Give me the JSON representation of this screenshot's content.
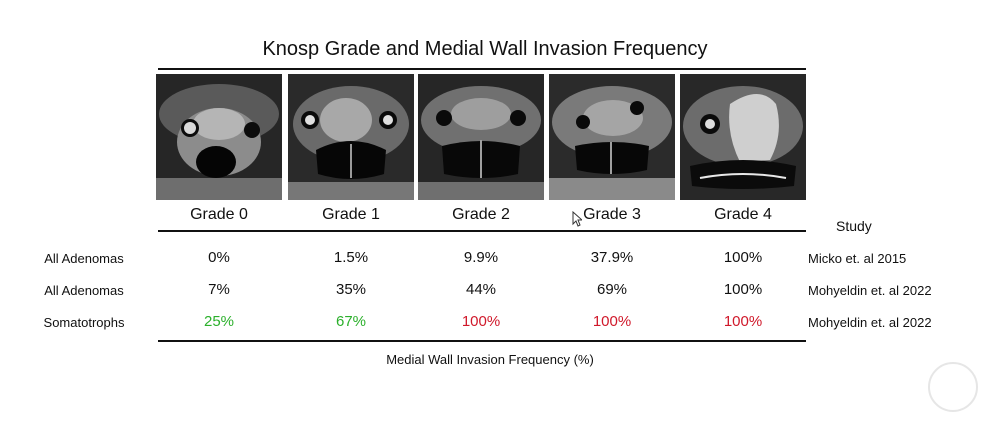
{
  "title": "Knosp Grade and Medial Wall Invasion Frequency",
  "grades": [
    "Grade 0",
    "Grade 1",
    "Grade 2",
    "Grade 3",
    "Grade 4"
  ],
  "study_header": "Study",
  "rows": [
    {
      "label": "All Adenomas",
      "values": [
        "0%",
        "1.5%",
        "9.9%",
        "37.9%",
        "100%"
      ],
      "value_colors": [
        "#111111",
        "#111111",
        "#111111",
        "#111111",
        "#111111"
      ],
      "study": "Micko et. al 2015"
    },
    {
      "label": "All Adenomas",
      "values": [
        "7%",
        "35%",
        "44%",
        "69%",
        "100%"
      ],
      "value_colors": [
        "#111111",
        "#111111",
        "#111111",
        "#111111",
        "#111111"
      ],
      "study": "Mohyeldin et. al 2022"
    },
    {
      "label": "Somatotrophs",
      "values": [
        "25%",
        "67%",
        "100%",
        "100%",
        "100%"
      ],
      "value_colors": [
        "#2bb02b",
        "#2bb02b",
        "#d0182a",
        "#d0182a",
        "#d0182a"
      ],
      "study": "Mohyeldin et. al 2022"
    }
  ],
  "caption": "Medial Wall Invasion Frequency (%)",
  "images": [
    "mri-grade-0",
    "mri-grade-1",
    "mri-grade-2",
    "mri-grade-3",
    "mri-grade-4"
  ]
}
